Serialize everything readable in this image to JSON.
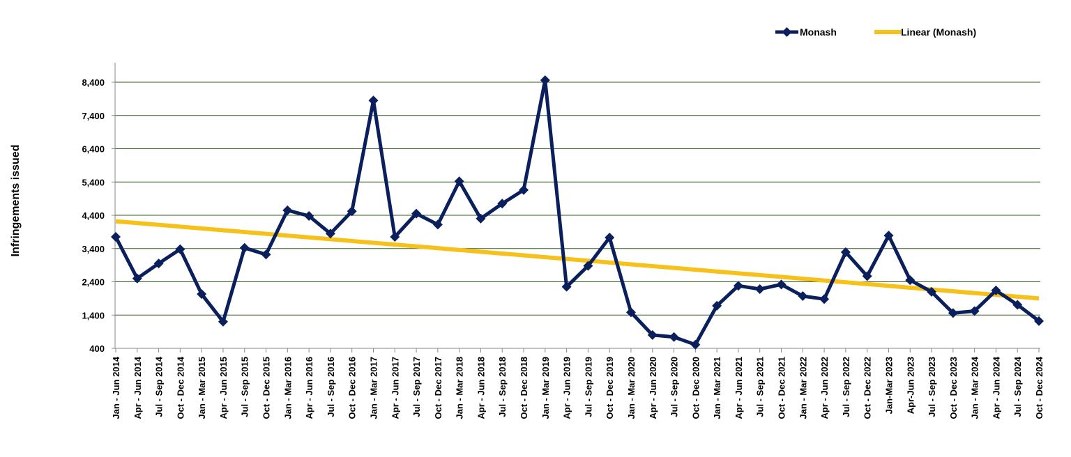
{
  "chart_data": {
    "type": "line",
    "title": "",
    "xlabel": "",
    "ylabel": "Infringements issued",
    "ylim": [
      400,
      8400
    ],
    "yticks": [
      400,
      1400,
      2400,
      3400,
      4400,
      5400,
      6400,
      7400,
      8400
    ],
    "ytick_labels": [
      "400",
      "1,400",
      "2,400",
      "3,400",
      "4,400",
      "5,400",
      "6,400",
      "7,400",
      "8,400"
    ],
    "grid": true,
    "legend_position": "top-right",
    "categories": [
      "Jan - Jun 2014",
      "Apr - Jun 2014",
      "Jul - Sep 2014",
      "Oct - Dec 2014",
      "Jan - Mar 2015",
      "Apr - Jun 2015",
      "Jul - Sep 2015",
      "Oct - Dec 2015",
      "Jan - Mar 2016",
      "Apr - Jun 2016",
      "Jul - Sep 2016",
      "Oct - Dec 2016",
      "Jan - Mar 2017",
      "Apr - Jun 2017",
      "Jul - Sep 2017",
      "Oct - Dec 2017",
      "Jan - Mar 2018",
      "Apr - Jun 2018",
      "Jul - Sep 2018",
      "Oct - Dec 2018",
      "Jan - Mar 2019",
      "Apr - Jun 2019",
      "Jul - Sep 2019",
      "Oct - Dec 2019",
      "Jan - Mar 2020",
      "Apr - Jun 2020",
      "Jul - Sep 2020",
      "Oct - Dec 2020",
      "Jan - Mar 2021",
      "Apr - Jun 2021",
      "Jul - Sep 2021",
      "Oct - Dec 2021",
      "Jan - Mar 2022",
      "Apr - Jun 2022",
      "Jul - Sep 2022",
      "Oct - Dec 2022",
      "Jan-Mar 2023",
      "Apr-Jun 2023",
      "Jul - Sep 2023",
      "Oct - Dec 2023",
      "Jan - Mar 2024",
      "Apr - Jun 2024",
      "Jul - Sep 2024",
      "Oct - Dec 2024"
    ],
    "series": [
      {
        "name": "Monash",
        "color": "#0b1f5c",
        "marker": "diamond",
        "values": [
          3750,
          2500,
          2950,
          3380,
          2030,
          1200,
          3420,
          3220,
          4550,
          4380,
          3850,
          4520,
          7850,
          3750,
          4450,
          4120,
          5420,
          4300,
          4750,
          5160,
          8460,
          2250,
          2880,
          3730,
          1480,
          800,
          740,
          510,
          1680,
          2280,
          2180,
          2320,
          1970,
          1880,
          3290,
          2570,
          3790,
          2450,
          2100,
          1460,
          1520,
          2140,
          1710,
          1220
        ]
      },
      {
        "name": "Linear (Monash)",
        "color": "#f5c11a",
        "type": "trendline",
        "start": 4220,
        "end": 1900
      }
    ]
  }
}
